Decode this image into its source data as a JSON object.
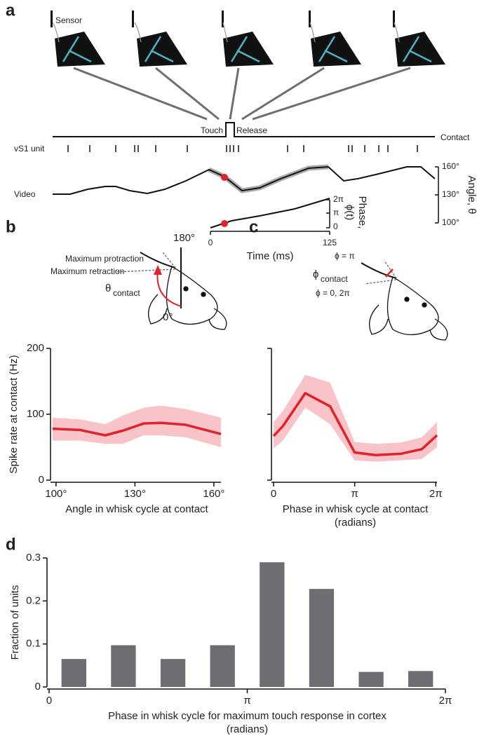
{
  "panels": [
    "a",
    "b",
    "c",
    "d"
  ],
  "schematic_a": {
    "sensor": "Sensor",
    "touch": "Touch",
    "release": "Release",
    "contact": "Contact",
    "unit": "vS1 unit",
    "video": "Video",
    "angle_label": "Angle, θ",
    "angle_ticks": [
      "160°",
      "130°",
      "100°"
    ],
    "phase_label": [
      "Phase,",
      "ϕ(t)"
    ],
    "phase_ticks": [
      "2π",
      "π",
      "0"
    ],
    "time_label": "Time (ms)",
    "time_ticks": [
      "0",
      "125"
    ]
  },
  "inset_b": {
    "top": "180°",
    "bottom": "0°",
    "protraction": "Maximum protraction",
    "retraction": "Maximum retraction",
    "symbol": "θ",
    "subscript": "contact"
  },
  "inset_c": {
    "pi": "ϕ = π",
    "symbol": "ϕ",
    "subscript": "contact",
    "zero": "ϕ = 0, 2π"
  },
  "chart_data": [
    {
      "type": "line",
      "x": [
        98.7,
        109.3,
        118.7,
        125.3,
        133.3,
        140,
        149.3,
        162.7
      ],
      "series": [
        {
          "color": "#e3212b",
          "band_color": "#f8c4c8",
          "values": [
            78,
            76,
            68,
            75,
            86,
            87,
            84,
            70
          ],
          "lower": [
            60,
            60,
            55,
            55,
            68,
            68,
            65,
            50
          ],
          "upper": [
            95,
            92,
            85,
            98,
            110,
            113,
            108,
            95
          ]
        }
      ],
      "xlim": [
        98.7,
        162.7
      ],
      "xticks": [
        {
          "value": 100,
          "label": "100°"
        },
        {
          "value": 130,
          "label": "130°"
        },
        {
          "value": 160,
          "label": "160°"
        }
      ],
      "ylim": [
        0,
        200
      ],
      "yticks": [
        0,
        100,
        200
      ],
      "show_ytick_labels": true,
      "x_label": [
        "Angle in whisk cycle at contact"
      ],
      "y_label": "Spike rate at contact (Hz)"
    },
    {
      "type": "line",
      "x": [
        0,
        0.36,
        1.23,
        2.19,
        3.14,
        3.96,
        4.92,
        5.74,
        6.33
      ],
      "series": [
        {
          "color": "#e3212b",
          "band_color": "#f8c4c8",
          "values": [
            67,
            82,
            132,
            112,
            42,
            38,
            40,
            47,
            68
          ],
          "lower": [
            48,
            60,
            110,
            85,
            30,
            28,
            30,
            32,
            50
          ],
          "upper": [
            88,
            105,
            160,
            148,
            58,
            55,
            57,
            65,
            88
          ]
        }
      ],
      "xlim": [
        0,
        6.33
      ],
      "xticks": [
        0,
        {
          "value": 3.1416,
          "label": "π"
        },
        {
          "value": 6.2832,
          "label": "2π"
        }
      ],
      "ylim": [
        0,
        200
      ],
      "yticks": [
        0,
        100,
        200
      ],
      "show_ytick_labels": false,
      "x_label": [
        "Phase in whisk cycle at contact",
        "(radians)"
      ]
    },
    {
      "type": "histogram",
      "bins": [
        0,
        0.7854,
        1.5708,
        2.3562,
        3.1416,
        3.927,
        4.7124,
        5.4978,
        6.2832
      ],
      "values": [
        0.065,
        0.097,
        0.065,
        0.097,
        0.29,
        0.228,
        0.035,
        0.037
      ],
      "color": "#6d6e71",
      "xlim": [
        0,
        6.2832
      ],
      "xticks": [
        0,
        {
          "value": 3.1416,
          "label": "π"
        },
        {
          "value": 6.2832,
          "label": "2π"
        }
      ],
      "ylim": [
        0,
        0.3
      ],
      "yticks": [
        0,
        0.1,
        0.2,
        0.3
      ],
      "show_ytick_labels": true,
      "x_label": [
        "Phase in whisk cycle for maximum touch response in cortex",
        "(radians)"
      ],
      "y_label": "Fraction of units"
    }
  ]
}
